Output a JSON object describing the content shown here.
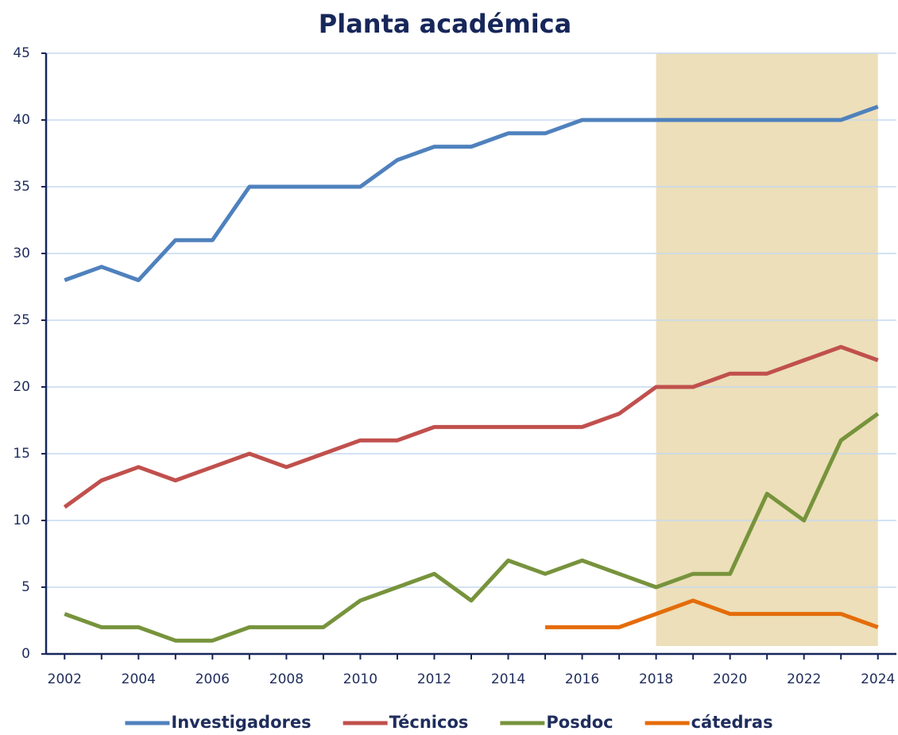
{
  "chart_data": {
    "type": "line",
    "title": "Planta académica",
    "x": [
      2002,
      2003,
      2004,
      2005,
      2006,
      2007,
      2008,
      2009,
      2010,
      2011,
      2012,
      2013,
      2014,
      2015,
      2016,
      2017,
      2018,
      2019,
      2020,
      2021,
      2022,
      2023,
      2024
    ],
    "series": [
      {
        "name": "Investigadores",
        "color": "#4f81bd",
        "values": [
          28,
          29,
          28,
          31,
          31,
          35,
          35,
          35,
          35,
          37,
          38,
          38,
          39,
          39,
          40,
          40,
          40,
          40,
          40,
          40,
          40,
          40,
          41
        ]
      },
      {
        "name": "Técnicos",
        "color": "#c0504d",
        "values": [
          11,
          13,
          14,
          13,
          14,
          15,
          14,
          15,
          16,
          16,
          17,
          17,
          17,
          17,
          17,
          18,
          20,
          20,
          21,
          21,
          22,
          23,
          22
        ]
      },
      {
        "name": "Posdoc",
        "color": "#77933c",
        "values": [
          3,
          2,
          2,
          1,
          1,
          2,
          2,
          2,
          4,
          5,
          6,
          4,
          7,
          6,
          7,
          6,
          5,
          6,
          6,
          12,
          10,
          16,
          18
        ]
      },
      {
        "name": "cátedras",
        "color": "#e46c0a",
        "values": [
          null,
          null,
          null,
          null,
          null,
          null,
          null,
          null,
          null,
          null,
          null,
          null,
          null,
          2,
          2,
          2,
          3,
          4,
          3,
          3,
          3,
          3,
          2
        ]
      }
    ],
    "xlim": [
      2001.5,
      2024.5
    ],
    "xticks": [
      2002,
      2004,
      2006,
      2008,
      2010,
      2012,
      2014,
      2016,
      2018,
      2020,
      2022,
      2024
    ],
    "ylim": [
      0,
      45
    ],
    "yticks": [
      0,
      5,
      10,
      15,
      20,
      25,
      30,
      35,
      40,
      45
    ],
    "grid": true,
    "legend": "bottom",
    "highlight": {
      "x": [
        2018,
        2024
      ],
      "color": "#ecdfb9"
    }
  }
}
